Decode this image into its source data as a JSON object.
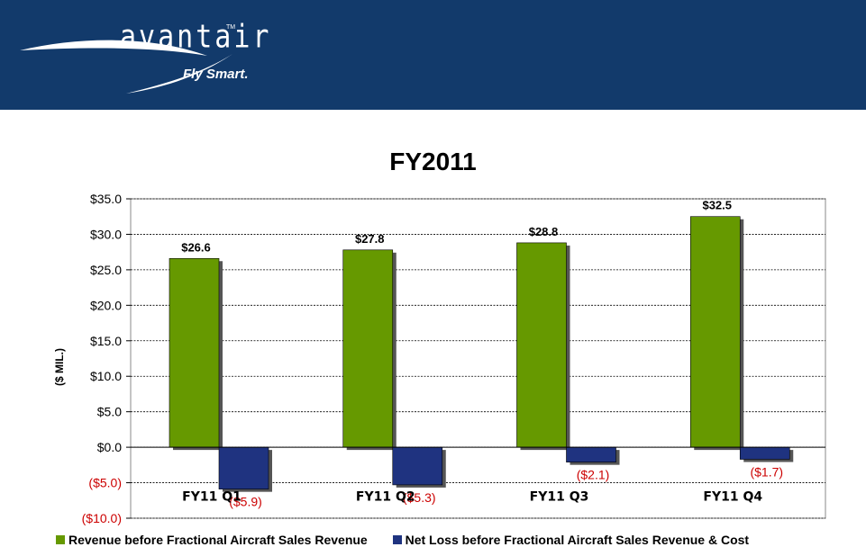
{
  "header": {
    "logo_text": "avantair",
    "logo_tm": "TM",
    "tagline": "Fly Smart."
  },
  "colors": {
    "header_bg": "#123a6b",
    "series_revenue": "#669900",
    "series_netloss": "#1f3380",
    "negative_label": "#cc0000"
  },
  "chart_data": {
    "type": "bar",
    "title": "FY2011",
    "ylabel": "($ MIL.)",
    "xlabel": "",
    "categories": [
      "FY11 Q1",
      "FY11 Q2",
      "FY11 Q3",
      "FY11 Q4"
    ],
    "series": [
      {
        "name": "Revenue before Fractional Aircraft Sales Revenue",
        "values": [
          26.6,
          27.8,
          28.8,
          32.5
        ],
        "labels": [
          "$26.6",
          "$27.8",
          "$28.8",
          "$32.5"
        ]
      },
      {
        "name": "Net Loss before Fractional Aircraft Sales Revenue & Cost",
        "values": [
          -5.9,
          -5.3,
          -2.1,
          -1.7
        ],
        "labels": [
          "($5.9)",
          "($5.3)",
          "($2.1)",
          "($1.7)"
        ]
      }
    ],
    "ylim": [
      -10,
      35
    ],
    "yticks": [
      -10,
      -5,
      0,
      5,
      10,
      15,
      20,
      25,
      30,
      35
    ],
    "ytick_labels": [
      "($10.0)",
      "($5.0)",
      "$0.0",
      "$5.0",
      "$10.0",
      "$15.0",
      "$20.0",
      "$25.0",
      "$30.0",
      "$35.0"
    ],
    "grid": true,
    "legend_position": "bottom"
  }
}
